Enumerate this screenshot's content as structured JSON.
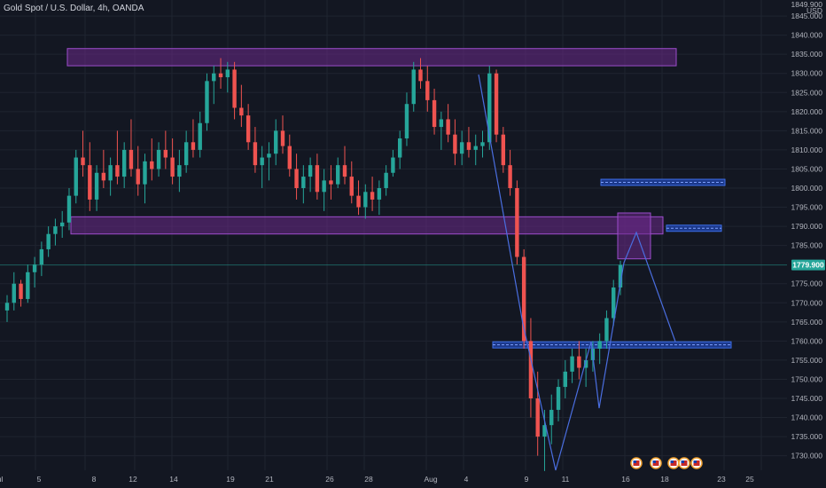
{
  "header": {
    "title": "Gold Spot / U.S. Dollar, 4h, OANDA"
  },
  "price_axis": {
    "currency": "USD",
    "top_partial": "1849.900",
    "ticks": [
      {
        "label": "1845.000",
        "value": 1845
      },
      {
        "label": "1840.000",
        "value": 1840
      },
      {
        "label": "1835.000",
        "value": 1835
      },
      {
        "label": "1830.000",
        "value": 1830
      },
      {
        "label": "1825.000",
        "value": 1825
      },
      {
        "label": "1820.000",
        "value": 1820
      },
      {
        "label": "1815.000",
        "value": 1815
      },
      {
        "label": "1810.000",
        "value": 1810
      },
      {
        "label": "1805.000",
        "value": 1805
      },
      {
        "label": "1800.000",
        "value": 1800
      },
      {
        "label": "1795.000",
        "value": 1795
      },
      {
        "label": "1790.000",
        "value": 1790
      },
      {
        "label": "1785.000",
        "value": 1785
      },
      {
        "label": "1775.000",
        "value": 1775
      },
      {
        "label": "1770.000",
        "value": 1770
      },
      {
        "label": "1765.000",
        "value": 1765
      },
      {
        "label": "1760.000",
        "value": 1760
      },
      {
        "label": "1755.000",
        "value": 1755
      },
      {
        "label": "1750.000",
        "value": 1750
      },
      {
        "label": "1745.000",
        "value": 1745
      },
      {
        "label": "1740.000",
        "value": 1740
      },
      {
        "label": "1735.000",
        "value": 1735
      },
      {
        "label": "1730.000",
        "value": 1730
      }
    ],
    "current_price": "1779.900",
    "current_value": 1779.9
  },
  "time_axis": {
    "labels": [
      {
        "text": "ul",
        "slot": 0
      },
      {
        "text": "5",
        "slot": 6
      },
      {
        "text": "8",
        "slot": 14
      },
      {
        "text": "12",
        "slot": 22
      },
      {
        "text": "14",
        "slot": 28
      },
      {
        "text": "19",
        "slot": 37
      },
      {
        "text": "21",
        "slot": 43
      },
      {
        "text": "26",
        "slot": 53
      },
      {
        "text": "28",
        "slot": 59
      },
      {
        "text": "Aug",
        "slot": 69
      },
      {
        "text": "4",
        "slot": 75
      },
      {
        "text": "9",
        "slot": 85
      },
      {
        "text": "11",
        "slot": 91
      },
      {
        "text": "16",
        "slot": 101
      },
      {
        "text": "18",
        "slot": 107
      },
      {
        "text": "23",
        "slot": 117
      },
      {
        "text": "25",
        "slot": 123
      }
    ]
  },
  "colors": {
    "background": "#131722",
    "grid": "#1f2430",
    "up": "#26a69a",
    "down": "#ef5350",
    "zone_fill": "#6b2a8a",
    "zone_stroke": "#9c4dcc",
    "level_fill": "#1e3f9e",
    "level_stroke": "#3d6ee8",
    "projection": "#4a6ee0",
    "price_line": "#26a69a",
    "axis_text": "#b2b5be"
  },
  "chart_data": {
    "type": "candlestick",
    "instrument": "Gold Spot / U.S. Dollar",
    "timeframe": "4h",
    "source": "OANDA",
    "ylim": [
      1726,
      1850
    ],
    "candles": [
      [
        1768,
        1772,
        1765,
        1770
      ],
      [
        1770,
        1778,
        1768,
        1775
      ],
      [
        1775,
        1776,
        1769,
        1771
      ],
      [
        1771,
        1780,
        1770,
        1778
      ],
      [
        1778,
        1782,
        1774,
        1780
      ],
      [
        1780,
        1786,
        1777,
        1784
      ],
      [
        1784,
        1790,
        1782,
        1788
      ],
      [
        1788,
        1792,
        1785,
        1790
      ],
      [
        1790,
        1794,
        1787,
        1791
      ],
      [
        1791,
        1800,
        1789,
        1798
      ],
      [
        1798,
        1810,
        1796,
        1808
      ],
      [
        1808,
        1815,
        1803,
        1806
      ],
      [
        1806,
        1812,
        1794,
        1797
      ],
      [
        1797,
        1806,
        1794,
        1804
      ],
      [
        1804,
        1810,
        1800,
        1802
      ],
      [
        1802,
        1808,
        1798,
        1806
      ],
      [
        1806,
        1815,
        1801,
        1803
      ],
      [
        1803,
        1812,
        1800,
        1810
      ],
      [
        1810,
        1818,
        1803,
        1805
      ],
      [
        1805,
        1811,
        1798,
        1801
      ],
      [
        1801,
        1809,
        1796,
        1807
      ],
      [
        1807,
        1813,
        1802,
        1805
      ],
      [
        1805,
        1812,
        1803,
        1810
      ],
      [
        1810,
        1815,
        1805,
        1808
      ],
      [
        1808,
        1813,
        1801,
        1803
      ],
      [
        1803,
        1810,
        1799,
        1806
      ],
      [
        1806,
        1815,
        1804,
        1812
      ],
      [
        1812,
        1818,
        1808,
        1810
      ],
      [
        1810,
        1820,
        1808,
        1817
      ],
      [
        1817,
        1830,
        1815,
        1828
      ],
      [
        1828,
        1832,
        1822,
        1830
      ],
      [
        1830,
        1834,
        1826,
        1829
      ],
      [
        1829,
        1833,
        1825,
        1831
      ],
      [
        1831,
        1833,
        1818,
        1821
      ],
      [
        1821,
        1827,
        1816,
        1819
      ],
      [
        1819,
        1822,
        1810,
        1812
      ],
      [
        1812,
        1816,
        1804,
        1806
      ],
      [
        1806,
        1811,
        1800,
        1808
      ],
      [
        1808,
        1812,
        1802,
        1809
      ],
      [
        1809,
        1818,
        1806,
        1815
      ],
      [
        1815,
        1819,
        1809,
        1811
      ],
      [
        1811,
        1814,
        1803,
        1805
      ],
      [
        1805,
        1809,
        1797,
        1800
      ],
      [
        1800,
        1806,
        1796,
        1803
      ],
      [
        1803,
        1808,
        1799,
        1806
      ],
      [
        1806,
        1809,
        1797,
        1799
      ],
      [
        1799,
        1805,
        1794,
        1802
      ],
      [
        1802,
        1806,
        1797,
        1801
      ],
      [
        1801,
        1808,
        1800,
        1806
      ],
      [
        1806,
        1811,
        1801,
        1803
      ],
      [
        1803,
        1807,
        1796,
        1798
      ],
      [
        1798,
        1802,
        1793,
        1795
      ],
      [
        1795,
        1801,
        1792,
        1799
      ],
      [
        1799,
        1803,
        1794,
        1797
      ],
      [
        1797,
        1802,
        1793,
        1800
      ],
      [
        1800,
        1806,
        1798,
        1804
      ],
      [
        1804,
        1810,
        1803,
        1808
      ],
      [
        1808,
        1815,
        1805,
        1813
      ],
      [
        1813,
        1825,
        1811,
        1822
      ],
      [
        1822,
        1833,
        1820,
        1831
      ],
      [
        1831,
        1834,
        1826,
        1828
      ],
      [
        1828,
        1832,
        1820,
        1823
      ],
      [
        1823,
        1826,
        1814,
        1816
      ],
      [
        1816,
        1820,
        1810,
        1818
      ],
      [
        1818,
        1822,
        1812,
        1814
      ],
      [
        1814,
        1818,
        1806,
        1809
      ],
      [
        1809,
        1815,
        1806,
        1812
      ],
      [
        1812,
        1816,
        1808,
        1810
      ],
      [
        1810,
        1814,
        1806,
        1811
      ],
      [
        1811,
        1815,
        1808,
        1812
      ],
      [
        1812,
        1832,
        1810,
        1830
      ],
      [
        1830,
        1831,
        1812,
        1814
      ],
      [
        1814,
        1816,
        1804,
        1806
      ],
      [
        1806,
        1810,
        1798,
        1800
      ],
      [
        1800,
        1802,
        1780,
        1782
      ],
      [
        1782,
        1784,
        1758,
        1760
      ],
      [
        1760,
        1766,
        1740,
        1745
      ],
      [
        1745,
        1752,
        1730,
        1735
      ],
      [
        1735,
        1742,
        1726,
        1738
      ],
      [
        1738,
        1746,
        1733,
        1742
      ],
      [
        1742,
        1750,
        1739,
        1748
      ],
      [
        1748,
        1755,
        1745,
        1752
      ],
      [
        1752,
        1758,
        1749,
        1756
      ],
      [
        1756,
        1760,
        1750,
        1753
      ],
      [
        1753,
        1758,
        1748,
        1755
      ],
      [
        1755,
        1760,
        1752,
        1758
      ],
      [
        1758,
        1762,
        1754,
        1760
      ],
      [
        1760,
        1768,
        1758,
        1766
      ],
      [
        1766,
        1776,
        1764,
        1774
      ],
      [
        1774,
        1781,
        1772,
        1779.9
      ]
    ],
    "resistance_zones": [
      {
        "from_slot": 5,
        "to_slot": 100,
        "top": 1836.5,
        "bottom": 1832.0
      },
      {
        "from_slot": 5,
        "to_slot": 90,
        "top": 1792.5,
        "bottom": 1788.0
      },
      {
        "from_slot": 85,
        "to_slot": 92,
        "top": 1793.5,
        "bottom": 1781.5
      }
    ],
    "levels": [
      {
        "from_slot": 84,
        "to_slot": 107,
        "value": 1759.0
      },
      {
        "from_slot": 100,
        "to_slot": 107,
        "value": 1801.5
      },
      {
        "from_slot": 94,
        "to_slot": 107,
        "value": 1789.5
      }
    ],
    "projection_path": [
      {
        "slot": 68,
        "value": 1829
      },
      {
        "slot": 76,
        "value": 1760
      },
      {
        "slot": 81,
        "value": 1732
      },
      {
        "slot": 86,
        "value": 1758
      },
      {
        "slot": 88,
        "value": 1745
      },
      {
        "slot": 92,
        "value": 1780
      },
      {
        "slot": 94,
        "value": 1789
      },
      {
        "slot": 98,
        "value": 1760
      }
    ]
  },
  "events": {
    "icons": [
      "us-flag-event-icon",
      "us-flag-event-icon",
      "us-flag-event-icon",
      "us-flag-event-icon",
      "us-flag-event-icon"
    ]
  }
}
